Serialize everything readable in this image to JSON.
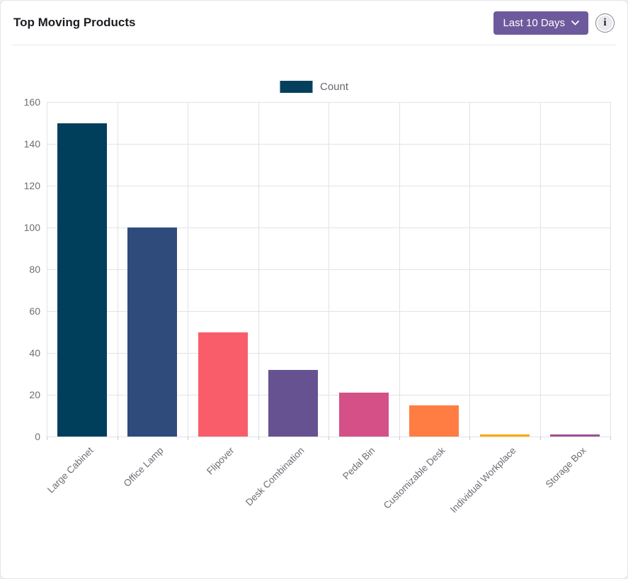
{
  "theme": {
    "accent": "#6d5a9c",
    "legend_swatch_color": "#04405d"
  },
  "header": {
    "title": "Top Moving Products",
    "filter_button": {
      "label": "Last 10 Days"
    },
    "info_icon_glyph": "i"
  },
  "chart_data": {
    "type": "bar",
    "title": "Top Moving Products",
    "legend": [
      {
        "label": "Count",
        "color": "#04405d"
      }
    ],
    "legend_position": "top",
    "grid": true,
    "categories": [
      "Large Cabinet",
      "Office Lamp",
      "Flipover",
      "Desk Combination",
      "Pedal Bin",
      "Customizable Desk",
      "Individual Workplace",
      "Storage Box"
    ],
    "series": [
      {
        "name": "Count",
        "values": [
          150,
          100,
          50,
          32,
          21,
          15,
          1,
          1
        ]
      }
    ],
    "colors": [
      "#003f5c",
      "#2f4b7c",
      "#f95d6a",
      "#665191",
      "#d45087",
      "#ff7c43",
      "#ffa600",
      "#a05195"
    ],
    "xlabel": "",
    "ylabel": "",
    "ylim": [
      0,
      160
    ],
    "ytick_step": 20,
    "yticks": [
      0,
      20,
      40,
      60,
      80,
      100,
      120,
      140,
      160
    ]
  }
}
